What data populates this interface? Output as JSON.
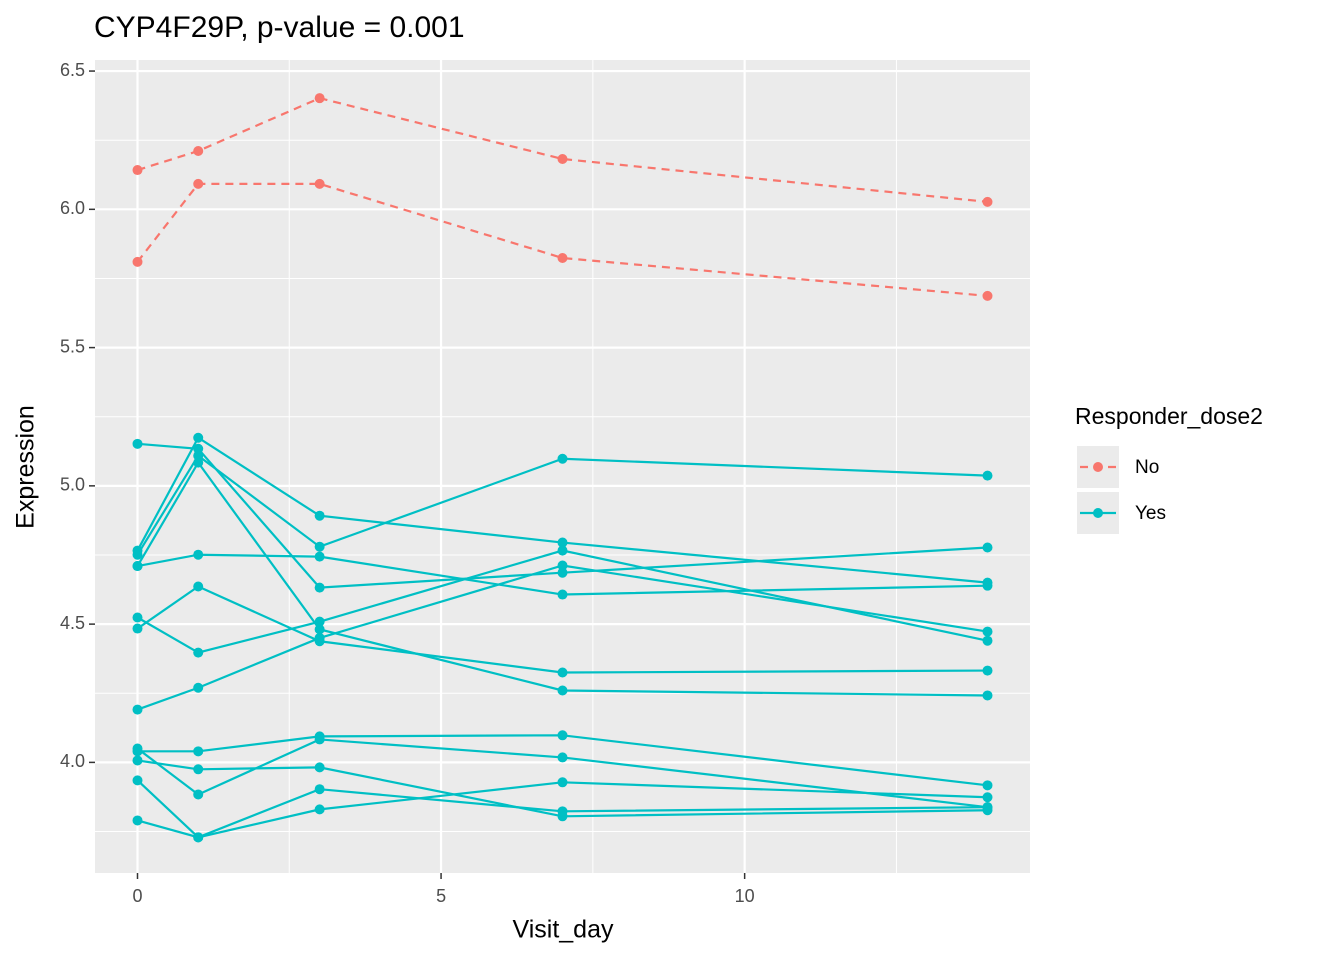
{
  "chart_data": {
    "type": "line",
    "title": "CYP4F29P, p-value = 0.001",
    "x_label": "Visit_day",
    "y_label": "Expression",
    "legend_title": "Responder_dose2",
    "legend_position": "right",
    "x": [
      0,
      1,
      3,
      7,
      14
    ],
    "xlim": [
      -0.7,
      14.7
    ],
    "xticks": [
      0,
      5,
      10
    ],
    "ylim": [
      3.6,
      6.54
    ],
    "yticks": [
      {
        "value": 4.0,
        "label": "4.0"
      },
      4.5,
      {
        "value": 5.0,
        "label": "5.0"
      },
      5.5,
      {
        "value": 6.0,
        "label": "6.0"
      },
      6.5
    ],
    "grid": true,
    "groups": [
      {
        "name": "No",
        "color": "#F8766D",
        "dashed": true,
        "lines": [
          [
            6.142,
            6.211,
            6.402,
            6.182,
            6.027
          ],
          [
            5.81,
            6.092,
            6.092,
            5.824,
            5.687
          ]
        ]
      },
      {
        "name": "Yes",
        "color": "#00BFC4",
        "dashed": false,
        "lines": [
          [
            5.152,
            5.134,
            4.632,
            4.686,
            4.777
          ],
          [
            4.766,
            5.174,
            4.892,
            4.795,
            4.65
          ],
          [
            4.751,
            5.109,
            4.78,
            5.098,
            5.037
          ],
          [
            4.71,
            5.084,
            4.481,
            4.26,
            4.242
          ],
          [
            4.71,
            4.751,
            4.744,
            4.607,
            4.639
          ],
          [
            4.524,
            4.397,
            4.509,
            4.766,
            4.44
          ],
          [
            4.484,
            4.636,
            4.438,
            4.325,
            4.332
          ],
          [
            4.191,
            4.27,
            4.45,
            4.712,
            4.473
          ],
          [
            4.05,
            3.884,
            4.083,
            4.018,
            3.838
          ],
          [
            4.04,
            4.04,
            4.094,
            4.098,
            3.917
          ],
          [
            4.007,
            3.975,
            3.982,
            3.805,
            3.827
          ],
          [
            3.935,
            3.729,
            3.903,
            3.823,
            3.838
          ],
          [
            3.79,
            3.729,
            3.83,
            3.928,
            3.874
          ]
        ]
      }
    ]
  }
}
